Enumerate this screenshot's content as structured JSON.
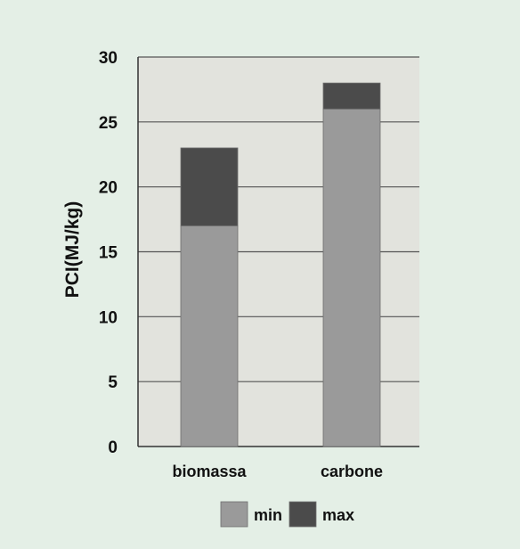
{
  "chart_data": {
    "type": "bar",
    "stacked": true,
    "categories": [
      "biomassa",
      "carbone"
    ],
    "series": [
      {
        "name": "min",
        "values": [
          17,
          26
        ],
        "color": "#9a9a9a"
      },
      {
        "name": "max",
        "values": [
          6,
          2
        ],
        "color": "#4b4b4b"
      }
    ],
    "ylabel": "PCI(MJ/kg)",
    "xlabel": "",
    "ylim": [
      0,
      30
    ],
    "yticks": [
      0,
      5,
      10,
      15,
      20,
      25,
      30
    ],
    "grid": true,
    "legend": "bottom",
    "colors": {
      "background": "#e4efe6",
      "plot_background": "#e2e3dd",
      "gridline": "#555555"
    }
  }
}
